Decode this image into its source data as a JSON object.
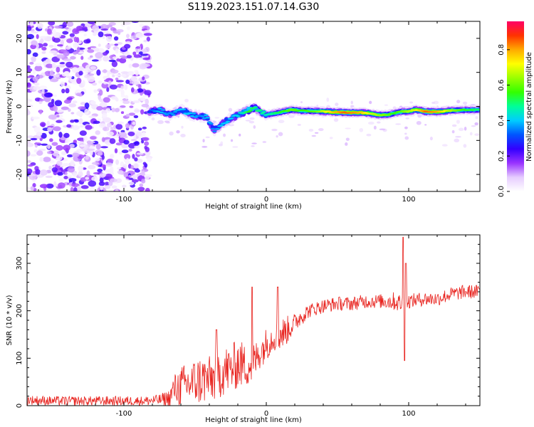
{
  "figure": {
    "title": "S119.2023.151.07.14.G30"
  },
  "chart_data": [
    {
      "type": "heatmap",
      "name": "spectrogram",
      "xlabel": "Height of straight line (km)",
      "ylabel": "Frequency (Hz)",
      "xlim": [
        -168,
        150
      ],
      "ylim": [
        -25,
        25
      ],
      "x_ticks": [
        -100,
        0,
        100
      ],
      "y_ticks": [
        -20,
        -10,
        0,
        10,
        20
      ],
      "colorbar": {
        "label": "Normalized spectral amplitude",
        "range": [
          0,
          0.96
        ],
        "ticks": [
          0.0,
          0.2,
          0.4,
          0.6,
          0.8
        ],
        "tick_labels": [
          "0.0",
          "0.2",
          "0.4",
          "0.6",
          "0.8"
        ],
        "colormap": [
          "#ffffff",
          "#e6ccff",
          "#9933ff",
          "#3300ff",
          "#0055ff",
          "#00ccff",
          "#00ff99",
          "#33ff00",
          "#99ff00",
          "#ffff00",
          "#ffaa00",
          "#ff3300",
          "#ff0066"
        ]
      },
      "noise_region": {
        "x_range": [
          -168,
          -82
        ],
        "y_range": [
          -25,
          25
        ],
        "amplitude_range": [
          0.02,
          0.25
        ]
      },
      "signal_track": {
        "x": [
          -82,
          -75,
          -68,
          -60,
          -52,
          -46,
          -42,
          -37,
          -32,
          -27,
          -22,
          -17,
          -12,
          -8,
          -4,
          0,
          6,
          12,
          18,
          25,
          35,
          45,
          55,
          65,
          72,
          78,
          85,
          90,
          95,
          100,
          105,
          112,
          120,
          130,
          140,
          150
        ],
        "freq": [
          -1.5,
          -1.0,
          -2.5,
          -1.0,
          -2.5,
          -3.0,
          -3.0,
          -7.0,
          -5.5,
          -4.0,
          -3.0,
          -2.0,
          -1.0,
          -0.5,
          -1.5,
          -2.5,
          -2.0,
          -1.5,
          -1.0,
          -1.3,
          -1.4,
          -1.6,
          -1.8,
          -1.8,
          -2.0,
          -2.5,
          -2.5,
          -2.0,
          -1.5,
          -1.5,
          -1.0,
          -1.5,
          -1.6,
          -1.2,
          -1.0,
          -1.0
        ],
        "amplitude": [
          0.3,
          0.4,
          0.35,
          0.4,
          0.4,
          0.35,
          0.4,
          0.35,
          0.4,
          0.4,
          0.4,
          0.45,
          0.55,
          0.5,
          0.5,
          0.45,
          0.5,
          0.55,
          0.6,
          0.55,
          0.6,
          0.75,
          0.85,
          0.8,
          0.7,
          0.65,
          0.6,
          0.55,
          0.6,
          0.65,
          0.7,
          0.85,
          0.8,
          0.65,
          0.55,
          0.5
        ]
      }
    },
    {
      "type": "line",
      "name": "snr",
      "xlabel": "Height of straight line (km)",
      "ylabel": "SNR (10 * v/v)",
      "xlim": [
        -168,
        150
      ],
      "ylim": [
        0,
        360
      ],
      "x_ticks": [
        -100,
        0,
        100
      ],
      "y_ticks": [
        0,
        100,
        200,
        300
      ],
      "series": [
        {
          "name": "SNR",
          "color": "#e8231e",
          "x": [
            -168,
            -150,
            -120,
            -100,
            -85,
            -75,
            -68,
            -65,
            -60,
            -55,
            -50,
            -45,
            -40,
            -35,
            -30,
            -25,
            -20,
            -15,
            -10,
            -5,
            0,
            5,
            10,
            15,
            20,
            25,
            30,
            35,
            40,
            50,
            60,
            70,
            80,
            90,
            95,
            100,
            110,
            120,
            130,
            140,
            150
          ],
          "y": [
            12,
            10,
            10,
            10,
            10,
            12,
            15,
            35,
            40,
            45,
            50,
            55,
            55,
            60,
            75,
            75,
            90,
            85,
            85,
            110,
            130,
            145,
            150,
            160,
            175,
            190,
            200,
            205,
            210,
            215,
            215,
            220,
            220,
            220,
            215,
            220,
            225,
            225,
            235,
            240,
            240
          ],
          "noise_amplitude": [
            10,
            10,
            10,
            10,
            10,
            12,
            20,
            30,
            45,
            45,
            50,
            55,
            50,
            50,
            55,
            50,
            55,
            45,
            45,
            35,
            35,
            30,
            35,
            30,
            20,
            20,
            15,
            15,
            15,
            15,
            15,
            15,
            15,
            20,
            20,
            15,
            15,
            15,
            15,
            15,
            15
          ],
          "spikes": [
            {
              "x": -10,
              "y": 250
            },
            {
              "x": 8,
              "y": 250
            },
            {
              "x": 96,
              "y": 355
            },
            {
              "x": 97,
              "y": 95
            },
            {
              "x": 98,
              "y": 300
            },
            {
              "x": -35,
              "y": 160
            }
          ]
        }
      ]
    }
  ]
}
